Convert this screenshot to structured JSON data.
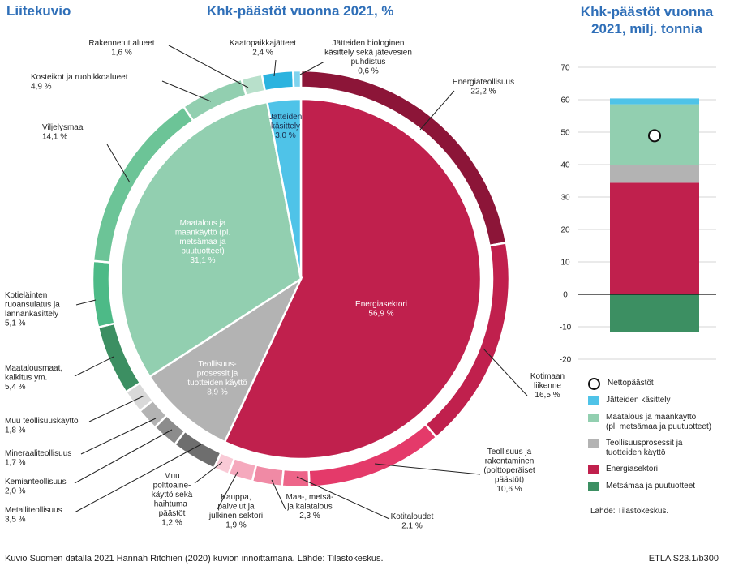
{
  "header": {
    "figure_label": "Liitekuvio",
    "main_title": "Khk-päästöt vuonna 2021, %",
    "side_title_line1": "Khk-päästöt vuonna",
    "side_title_line2": "2021, milj. tonnia"
  },
  "footer": {
    "left": "Kuvio Suomen datalla 2021 Hannah Ritchien (2020) kuvion innoittamana. Lähde: Tilastokeskus.",
    "right": "ETLA S23.1/b300"
  },
  "chart_data": [
    {
      "type": "pie",
      "title": "Khk-päästöt vuonna 2021, %",
      "inner_sectors": [
        {
          "name_lines": [
            "Energiasektori"
          ],
          "value": 56.9,
          "value_label": "56,9 %",
          "color": "#c0204d"
        },
        {
          "name_lines": [
            "Teollisuus-",
            "prosessit ja",
            "tuotteiden käyttö"
          ],
          "value": 8.9,
          "value_label": "8,9 %",
          "color": "#b3b3b3"
        },
        {
          "name_lines": [
            "Maatalous ja",
            "maankäyttö (pl.",
            "metsämaa ja",
            "puutuotteet)"
          ],
          "value": 31.1,
          "value_label": "31,1 %",
          "color": "#92cfb0"
        },
        {
          "name_lines": [
            "Jätteiden",
            "käsittely"
          ],
          "value": 3.0,
          "value_label": "3,0 %",
          "color": "#4fc3e8"
        }
      ],
      "outer_ring": [
        {
          "name_lines": [
            "Energiateollisuus"
          ],
          "value": 22.2,
          "value_label": "22,2 %",
          "color": "#8c1538"
        },
        {
          "name_lines": [
            "Kotimaan",
            "liikenne"
          ],
          "value": 16.5,
          "value_label": "16,5 %",
          "color": "#c0204d"
        },
        {
          "name_lines": [
            "Teollisuus ja",
            "rakentaminen",
            "(polttoperäiset",
            "päästöt)"
          ],
          "value": 10.6,
          "value_label": "10,6 %",
          "color": "#e43a6a"
        },
        {
          "name_lines": [
            "Kotitaloudet"
          ],
          "value": 2.1,
          "value_label": "2,1 %",
          "color": "#ed6589"
        },
        {
          "name_lines": [
            "Maa-, metsä-",
            "ja kalatalous"
          ],
          "value": 2.3,
          "value_label": "2,3 %",
          "color": "#f08aa5"
        },
        {
          "name_lines": [
            "Kauppa,",
            "palvelut ja",
            "julkinen sektori"
          ],
          "value": 1.9,
          "value_label": "1,9 %",
          "color": "#f5a9bd"
        },
        {
          "name_lines": [
            "Muu",
            "polttoaine-",
            "käyttö sekä",
            "haihtuma-",
            "päästöt"
          ],
          "value": 1.2,
          "value_label": "1,2 %",
          "color": "#f9cad6"
        },
        {
          "name_lines": [
            "Metalliteollisuus"
          ],
          "value": 3.5,
          "value_label": "3,5 %",
          "color": "#6e6e6e"
        },
        {
          "name_lines": [
            "Kemianteollisuus"
          ],
          "value": 2.0,
          "value_label": "2,0 %",
          "color": "#8c8c8c"
        },
        {
          "name_lines": [
            "Mineraaliteollisuus"
          ],
          "value": 1.7,
          "value_label": "1,7 %",
          "color": "#b3b3b3"
        },
        {
          "name_lines": [
            "Muu teollisuuskäyttö"
          ],
          "value": 1.8,
          "value_label": "1,8 %",
          "color": "#d9d9d9"
        },
        {
          "name_lines": [
            "Maatalousmaat,",
            "kalkitus ym."
          ],
          "value": 5.4,
          "value_label": "5,4 %",
          "color": "#3c8f62"
        },
        {
          "name_lines": [
            "Kotieläinten",
            "ruoansulatus ja",
            "lannankäsittely"
          ],
          "value": 5.1,
          "value_label": "5,1 %",
          "color": "#4dba87"
        },
        {
          "name_lines": [
            "Viljelysmaa"
          ],
          "value": 14.1,
          "value_label": "14,1 %",
          "color": "#6cc497"
        },
        {
          "name_lines": [
            "Kosteikot ja ruohikkoalueet"
          ],
          "value": 4.9,
          "value_label": "4,9 %",
          "color": "#92cfb0"
        },
        {
          "name_lines": [
            "Rakennetut alueet"
          ],
          "value": 1.6,
          "value_label": "1,6 %",
          "color": "#b8e0cb"
        },
        {
          "name_lines": [
            "Kaatopaikkajätteet"
          ],
          "value": 2.4,
          "value_label": "2,4 %",
          "color": "#2bb3df"
        },
        {
          "name_lines": [
            "Jätteiden biologinen",
            "käsittely sekä jätevesien",
            "puhdistus"
          ],
          "value": 0.6,
          "value_label": "0,6 %",
          "color": "#7fd3ee"
        }
      ]
    },
    {
      "type": "bar",
      "title": "Khk-päästöt vuonna 2021, milj. tonnia",
      "ylim": [
        -20,
        70
      ],
      "yticks": [
        70,
        60,
        50,
        40,
        30,
        20,
        10,
        0,
        -10,
        -20
      ],
      "segments": [
        {
          "name": "Metsämaa ja puutuotteet",
          "value": -11.5,
          "color": "#3c8f62"
        },
        {
          "name": "Energiasektori",
          "value": 34.4,
          "color": "#c0204d"
        },
        {
          "name": "Teollisuusprosessit ja tuotteiden käyttö",
          "value": 5.4,
          "color": "#b3b3b3"
        },
        {
          "name": "Maatalous ja maankäyttö (pl. metsämaa ja puutuotteet)",
          "value": 18.8,
          "color": "#92cfb0"
        },
        {
          "name": "Jätteiden käsittely",
          "value": 1.8,
          "color": "#4fc3e8"
        }
      ],
      "net_emissions": {
        "name": "Nettopäästöt",
        "value": 48.9
      }
    }
  ],
  "legend": {
    "items": [
      {
        "label_lines": [
          "Nettopäästöt"
        ],
        "color": "#ffffff",
        "kind": "circle"
      },
      {
        "label_lines": [
          "Jätteiden käsittely"
        ],
        "color": "#4fc3e8",
        "kind": "box"
      },
      {
        "label_lines": [
          "Maatalous ja maankäyttö",
          "(pl. metsämaa ja puutuotteet)"
        ],
        "color": "#92cfb0",
        "kind": "box"
      },
      {
        "label_lines": [
          "Teollisuusprosessit ja",
          "tuotteiden käyttö"
        ],
        "color": "#b3b3b3",
        "kind": "box"
      },
      {
        "label_lines": [
          "Energiasektori"
        ],
        "color": "#c0204d",
        "kind": "box"
      },
      {
        "label_lines": [
          "Metsämaa ja puutuotteet"
        ],
        "color": "#3c8f62",
        "kind": "box"
      }
    ]
  },
  "source_note": "Lähde: Tilastokeskus."
}
